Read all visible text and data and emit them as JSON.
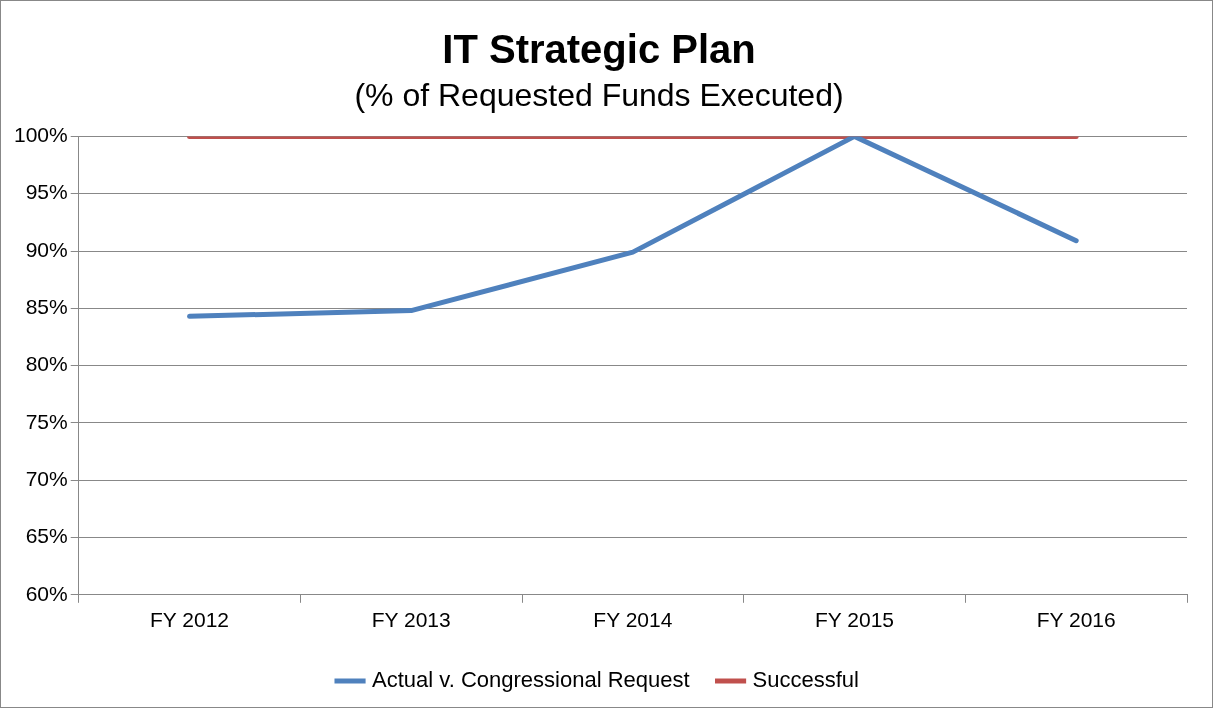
{
  "chart_data": {
    "type": "line",
    "title": "IT Strategic Plan",
    "subtitle": "(% of Requested Funds Executed)",
    "categories": [
      "FY 2012",
      "FY 2013",
      "FY 2014",
      "FY 2015",
      "FY 2016"
    ],
    "series": [
      {
        "name": "Actual v. Congressional Request",
        "color": "#4f81bd",
        "values": [
          84.3,
          84.8,
          89.9,
          100,
          90.9
        ]
      },
      {
        "name": "Successful",
        "color": "#c0504d",
        "values": [
          100,
          100,
          100,
          100,
          100
        ]
      }
    ],
    "ylim": [
      60,
      100
    ],
    "yticks": [
      {
        "value": 60,
        "label": "60%"
      },
      {
        "value": 65,
        "label": "65%"
      },
      {
        "value": 70,
        "label": "70%"
      },
      {
        "value": 75,
        "label": "75%"
      },
      {
        "value": 80,
        "label": "80%"
      },
      {
        "value": 85,
        "label": "85%"
      },
      {
        "value": 90,
        "label": "90%"
      },
      {
        "value": 95,
        "label": "95%"
      },
      {
        "value": 100,
        "label": "100%"
      }
    ],
    "grid": "y",
    "legend": "bottom",
    "marker": "none",
    "line_style": "solid"
  }
}
